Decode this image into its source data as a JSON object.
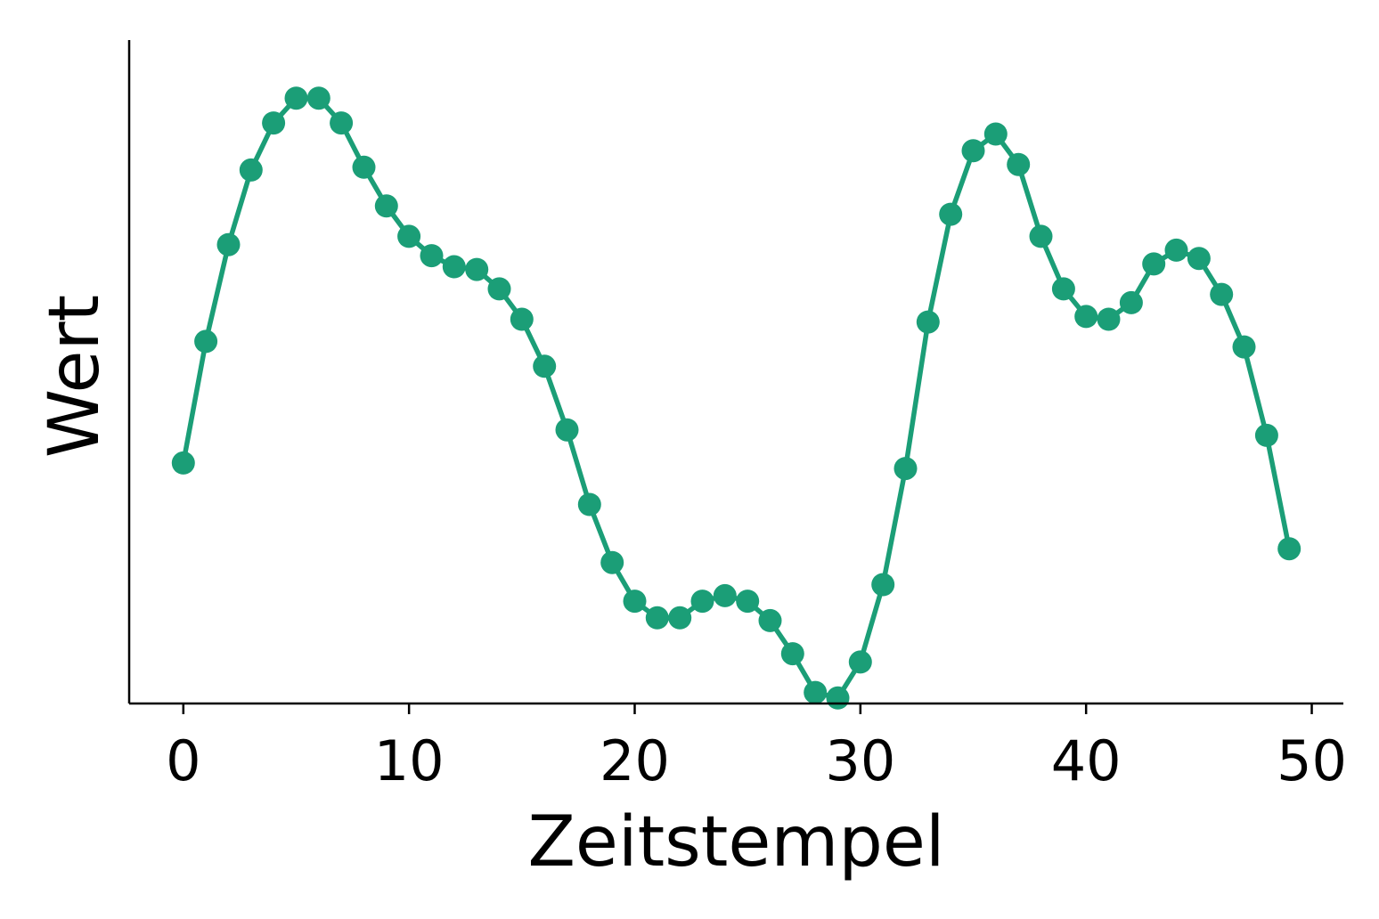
{
  "chart_data": {
    "type": "line",
    "title": "",
    "xlabel": "Zeitstempel",
    "ylabel": "Wert",
    "xlim": [
      -2.4,
      51.4
    ],
    "ylim": [
      -1.14,
      1.26
    ],
    "xticks": [
      0,
      10,
      20,
      30,
      40,
      50
    ],
    "yticks": [],
    "grid": false,
    "legend": "none",
    "colors": {
      "series": "#1b9e77",
      "axis": "#000000"
    },
    "series": [
      {
        "markers": true,
        "x": [
          0,
          1,
          2,
          3,
          4,
          5,
          6,
          7,
          8,
          9,
          10,
          11,
          12,
          13,
          14,
          15,
          16,
          17,
          18,
          19,
          20,
          21,
          22,
          23,
          24,
          25,
          26,
          27,
          28,
          29,
          30,
          31,
          32,
          33,
          34,
          35,
          36,
          37,
          38,
          39,
          40,
          41,
          42,
          43,
          44,
          45,
          46,
          47,
          48,
          49
        ],
        "y": [
          -0.27,
          0.17,
          0.52,
          0.79,
          0.96,
          1.05,
          1.05,
          0.96,
          0.8,
          0.66,
          0.55,
          0.48,
          0.44,
          0.43,
          0.36,
          0.25,
          0.08,
          -0.15,
          -0.42,
          -0.63,
          -0.77,
          -0.83,
          -0.83,
          -0.77,
          -0.75,
          -0.77,
          -0.84,
          -0.96,
          -1.1,
          -1.12,
          -0.99,
          -0.71,
          -0.29,
          0.24,
          0.63,
          0.86,
          0.92,
          0.81,
          0.55,
          0.36,
          0.26,
          0.25,
          0.31,
          0.45,
          0.5,
          0.47,
          0.34,
          0.15,
          -0.17,
          -0.58
        ]
      }
    ]
  }
}
